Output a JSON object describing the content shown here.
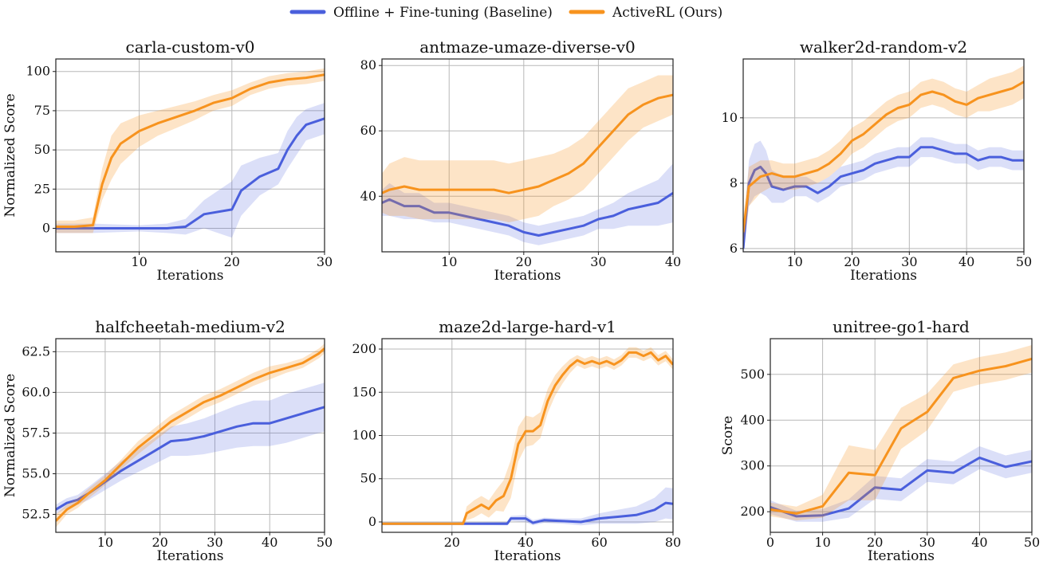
{
  "legend": {
    "entries": [
      {
        "label": "Offline + Fine-tuning (Baseline)",
        "color": "#4a5fdc"
      },
      {
        "label": "ActiveRL (Ours)",
        "color": "#f7931e"
      }
    ],
    "placement": "top-center"
  },
  "colors": {
    "baseline": "#4a5fdc",
    "ours": "#f7931e"
  },
  "chart_data": [
    {
      "type": "line",
      "title": "carla-custom-v0",
      "xlabel": "Iterations",
      "ylabel": "Normalized Score",
      "xlim": [
        1,
        30
      ],
      "ylim": [
        -15,
        108
      ],
      "xticks": [
        10,
        20,
        30
      ],
      "yticks": [
        0,
        25,
        50,
        75,
        100
      ],
      "grid": true,
      "series": [
        {
          "name": "Offline + Fine-tuning (Baseline)",
          "x": [
            1,
            5,
            10,
            13,
            15,
            17,
            20,
            21,
            23,
            25,
            26,
            27,
            28,
            30
          ],
          "y": [
            0,
            0,
            0,
            0,
            1,
            9,
            12,
            24,
            33,
            38,
            50,
            59,
            66,
            70
          ],
          "band": [
            3,
            3,
            2,
            3,
            5,
            9,
            18,
            16,
            12,
            10,
            12,
            12,
            10,
            10
          ]
        },
        {
          "name": "ActiveRL (Ours)",
          "x": [
            1,
            3,
            5,
            6,
            7,
            8,
            10,
            12,
            14,
            16,
            18,
            20,
            22,
            24,
            26,
            28,
            30
          ],
          "y": [
            1,
            1,
            2,
            28,
            45,
            54,
            62,
            67,
            71,
            75,
            80,
            83,
            89,
            93,
            95,
            96,
            98
          ],
          "band": [
            4,
            4,
            5,
            10,
            14,
            13,
            10,
            8,
            7,
            6,
            5,
            5,
            4,
            4,
            4,
            4,
            4
          ]
        }
      ]
    },
    {
      "type": "line",
      "title": "antmaze-umaze-diverse-v0",
      "xlabel": "Iterations",
      "ylabel": "",
      "xlim": [
        1,
        40
      ],
      "ylim": [
        23,
        82
      ],
      "xticks": [
        10,
        20,
        30,
        40
      ],
      "yticks": [
        40,
        60,
        80
      ],
      "grid": true,
      "series": [
        {
          "name": "Offline + Fine-tuning (Baseline)",
          "x": [
            1,
            2,
            4,
            6,
            8,
            10,
            12,
            14,
            16,
            18,
            20,
            22,
            24,
            26,
            28,
            30,
            32,
            34,
            36,
            38,
            40
          ],
          "y": [
            38,
            39,
            37,
            37,
            35,
            35,
            34,
            33,
            32,
            31,
            29,
            28,
            29,
            30,
            31,
            33,
            34,
            36,
            37,
            38,
            41
          ],
          "band": [
            4,
            5,
            4,
            4,
            3,
            3,
            3,
            3,
            3,
            3,
            3,
            3,
            3,
            3,
            3,
            3,
            4,
            5,
            6,
            7,
            9
          ]
        },
        {
          "name": "ActiveRL (Ours)",
          "x": [
            1,
            2,
            4,
            6,
            8,
            10,
            12,
            14,
            16,
            18,
            20,
            22,
            24,
            26,
            28,
            30,
            32,
            34,
            36,
            38,
            40
          ],
          "y": [
            41,
            42,
            43,
            42,
            42,
            42,
            42,
            42,
            42,
            41,
            42,
            43,
            45,
            47,
            50,
            55,
            60,
            65,
            68,
            70,
            71
          ],
          "band": [
            6,
            8,
            9,
            9,
            9,
            9,
            9,
            9,
            9,
            9,
            9,
            9,
            8,
            8,
            8,
            8,
            8,
            8,
            7,
            7,
            6
          ]
        }
      ]
    },
    {
      "type": "line",
      "title": "walker2d-random-v2",
      "xlabel": "Iterations",
      "ylabel": "",
      "xlim": [
        1,
        50
      ],
      "ylim": [
        5.9,
        11.8
      ],
      "xticks": [
        10,
        20,
        30,
        40,
        50
      ],
      "yticks": [
        6,
        8,
        10
      ],
      "grid": true,
      "series": [
        {
          "name": "Offline + Fine-tuning (Baseline)",
          "x": [
            1,
            2,
            3,
            4,
            5,
            6,
            8,
            10,
            12,
            14,
            16,
            18,
            20,
            22,
            24,
            26,
            28,
            30,
            32,
            34,
            36,
            38,
            40,
            42,
            44,
            46,
            48,
            50
          ],
          "y": [
            6.0,
            8.0,
            8.4,
            8.5,
            8.3,
            7.9,
            7.8,
            7.9,
            7.9,
            7.7,
            7.9,
            8.2,
            8.3,
            8.4,
            8.6,
            8.7,
            8.8,
            8.8,
            9.1,
            9.1,
            9.0,
            8.9,
            8.9,
            8.7,
            8.8,
            8.8,
            8.7,
            8.7
          ],
          "band": [
            0.3,
            0.7,
            0.8,
            0.8,
            0.7,
            0.5,
            0.4,
            0.3,
            0.3,
            0.3,
            0.3,
            0.3,
            0.3,
            0.3,
            0.3,
            0.3,
            0.3,
            0.3,
            0.3,
            0.3,
            0.3,
            0.3,
            0.3,
            0.3,
            0.3,
            0.3,
            0.3,
            0.3
          ]
        },
        {
          "name": "ActiveRL (Ours)",
          "x": [
            1,
            2,
            4,
            6,
            8,
            10,
            12,
            14,
            16,
            18,
            20,
            22,
            24,
            26,
            28,
            30,
            32,
            34,
            36,
            38,
            40,
            42,
            44,
            46,
            48,
            50
          ],
          "y": [
            6.5,
            7.9,
            8.2,
            8.3,
            8.2,
            8.2,
            8.3,
            8.4,
            8.6,
            8.9,
            9.3,
            9.5,
            9.8,
            10.1,
            10.3,
            10.4,
            10.7,
            10.8,
            10.7,
            10.5,
            10.4,
            10.6,
            10.7,
            10.8,
            10.9,
            11.1
          ],
          "band": [
            0.4,
            0.6,
            0.5,
            0.4,
            0.4,
            0.4,
            0.4,
            0.4,
            0.4,
            0.4,
            0.4,
            0.4,
            0.4,
            0.4,
            0.4,
            0.4,
            0.4,
            0.4,
            0.4,
            0.4,
            0.4,
            0.4,
            0.5,
            0.5,
            0.5,
            0.5
          ]
        }
      ]
    },
    {
      "type": "line",
      "title": "halfcheetah-medium-v2",
      "xlabel": "Iterations",
      "ylabel": "Normalized Score",
      "xlim": [
        1,
        50
      ],
      "ylim": [
        51.4,
        63.3
      ],
      "xticks": [
        10,
        20,
        30,
        40,
        50
      ],
      "yticks": [
        52.5,
        55.0,
        57.5,
        60.0,
        62.5
      ],
      "grid": true,
      "series": [
        {
          "name": "Offline + Fine-tuning (Baseline)",
          "x": [
            1,
            3,
            5,
            7,
            10,
            13,
            16,
            19,
            22,
            25,
            28,
            31,
            34,
            37,
            40,
            43,
            46,
            49,
            50
          ],
          "y": [
            52.8,
            53.2,
            53.4,
            53.8,
            54.5,
            55.2,
            55.8,
            56.4,
            57.0,
            57.1,
            57.3,
            57.6,
            57.9,
            58.1,
            58.1,
            58.4,
            58.7,
            59.0,
            59.1
          ],
          "band": [
            0.3,
            0.3,
            0.3,
            0.4,
            0.5,
            0.6,
            0.7,
            0.8,
            0.9,
            1.0,
            1.1,
            1.2,
            1.3,
            1.4,
            1.4,
            1.5,
            1.5,
            1.5,
            1.5
          ]
        },
        {
          "name": "ActiveRL (Ours)",
          "x": [
            1,
            3,
            5,
            7,
            10,
            13,
            16,
            19,
            22,
            25,
            28,
            31,
            34,
            37,
            40,
            43,
            46,
            49,
            50
          ],
          "y": [
            52.1,
            52.8,
            53.2,
            53.8,
            54.6,
            55.6,
            56.6,
            57.4,
            58.2,
            58.8,
            59.4,
            59.8,
            60.3,
            60.8,
            61.2,
            61.5,
            61.8,
            62.4,
            62.7
          ],
          "band": [
            0.4,
            0.3,
            0.3,
            0.3,
            0.3,
            0.3,
            0.4,
            0.4,
            0.4,
            0.4,
            0.4,
            0.4,
            0.4,
            0.4,
            0.4,
            0.3,
            0.3,
            0.3,
            0.3
          ]
        }
      ]
    },
    {
      "type": "line",
      "title": "maze2d-large-hard-v1",
      "xlabel": "Iterations",
      "ylabel": "",
      "xlim": [
        1,
        80
      ],
      "ylim": [
        -12,
        212
      ],
      "xticks": [
        20,
        40,
        60,
        80
      ],
      "yticks": [
        0,
        50,
        100,
        150,
        200
      ],
      "grid": true,
      "series": [
        {
          "name": "Offline + Fine-tuning (Baseline)",
          "x": [
            1,
            10,
            20,
            35,
            36,
            40,
            42,
            45,
            50,
            55,
            60,
            65,
            70,
            75,
            78,
            80
          ],
          "y": [
            -2,
            -2,
            -2,
            -2,
            4,
            4,
            -1,
            2,
            1,
            0,
            4,
            6,
            8,
            14,
            22,
            21
          ],
          "band": [
            1,
            1,
            1,
            2,
            3,
            4,
            3,
            3,
            3,
            4,
            6,
            8,
            10,
            14,
            18,
            18
          ]
        },
        {
          "name": "ActiveRL (Ours)",
          "x": [
            1,
            10,
            20,
            23,
            24,
            26,
            28,
            30,
            32,
            34,
            36,
            38,
            40,
            42,
            44,
            46,
            48,
            50,
            52,
            54,
            56,
            58,
            60,
            62,
            64,
            66,
            68,
            70,
            72,
            74,
            76,
            78,
            80
          ],
          "y": [
            -2,
            -2,
            -2,
            -2,
            10,
            15,
            20,
            15,
            25,
            30,
            50,
            90,
            105,
            105,
            112,
            140,
            158,
            170,
            180,
            187,
            183,
            186,
            183,
            186,
            182,
            187,
            196,
            196,
            192,
            196,
            187,
            192,
            182
          ],
          "band": [
            1,
            1,
            1,
            2,
            8,
            10,
            10,
            10,
            12,
            18,
            22,
            20,
            18,
            16,
            15,
            14,
            12,
            10,
            8,
            6,
            6,
            6,
            6,
            6,
            6,
            6,
            6,
            6,
            6,
            6,
            6,
            6,
            6
          ]
        }
      ]
    },
    {
      "type": "line",
      "title": "unitree-go1-hard",
      "xlabel": "Iterations",
      "ylabel": "Score",
      "xlim": [
        0,
        50
      ],
      "ylim": [
        155,
        578
      ],
      "xticks": [
        0,
        10,
        20,
        30,
        40,
        50
      ],
      "yticks": [
        200,
        300,
        400,
        500
      ],
      "grid": true,
      "series": [
        {
          "name": "Offline + Fine-tuning (Baseline)",
          "x": [
            0,
            5,
            10,
            15,
            20,
            25,
            30,
            35,
            40,
            45,
            50
          ],
          "y": [
            210,
            190,
            192,
            207,
            253,
            248,
            290,
            285,
            318,
            298,
            310
          ],
          "band": [
            15,
            12,
            14,
            20,
            25,
            25,
            25,
            25,
            25,
            25,
            25
          ]
        },
        {
          "name": "ActiveRL (Ours)",
          "x": [
            0,
            5,
            10,
            15,
            20,
            25,
            30,
            35,
            40,
            45,
            50
          ],
          "y": [
            205,
            196,
            212,
            285,
            280,
            382,
            418,
            492,
            508,
            518,
            534
          ],
          "band": [
            15,
            15,
            25,
            60,
            55,
            45,
            40,
            30,
            30,
            30,
            30
          ]
        }
      ]
    }
  ]
}
